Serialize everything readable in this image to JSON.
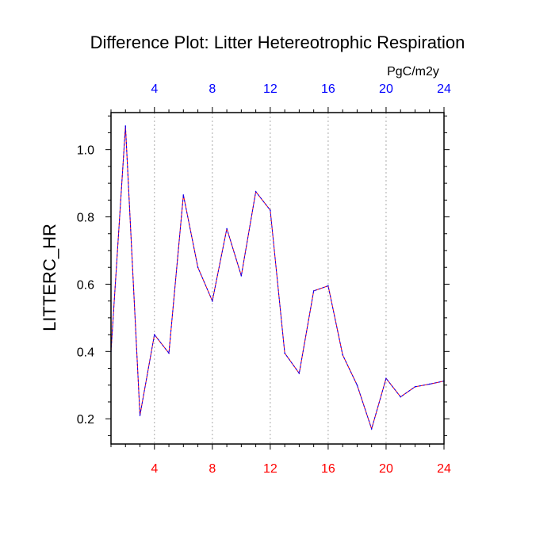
{
  "colors": {
    "bottom_ticks": "#ff0000",
    "top_ticks": "#0000ff",
    "series_dash_a": "#ff0000",
    "series_dash_b": "#0000ff",
    "grid": "#aaaaaa",
    "axis": "#000000"
  },
  "chart_data": {
    "type": "line",
    "title": "Difference Plot: Litter Hetereotrophic Respiration",
    "ylabel": "LITTERC_HR",
    "units": "PgC/m2y",
    "xlim": [
      1,
      24
    ],
    "ylim": [
      0.125,
      1.11
    ],
    "x_major_ticks": [
      "4",
      "8",
      "12",
      "16",
      "20",
      "24"
    ],
    "x_tick_values": [
      4,
      8,
      12,
      16,
      20,
      24
    ],
    "y_major_ticks": [
      "0.2",
      "0.4",
      "0.6",
      "0.8",
      "1.0"
    ],
    "y_tick_values": [
      0.2,
      0.4,
      0.6,
      0.8,
      1.0
    ],
    "grid": "vertical dashed at major x ticks",
    "x": [
      1,
      2,
      3,
      4,
      5,
      6,
      7,
      8,
      9,
      10,
      11,
      12,
      13,
      14,
      15,
      16,
      17,
      18,
      19,
      20,
      21,
      22,
      23,
      24
    ],
    "values": [
      0.4,
      1.07,
      0.21,
      0.45,
      0.395,
      0.865,
      0.65,
      0.55,
      0.765,
      0.625,
      0.875,
      0.82,
      0.395,
      0.335,
      0.58,
      0.595,
      0.39,
      0.3,
      0.17,
      0.32,
      0.265,
      0.295,
      0.303,
      0.312
    ]
  }
}
